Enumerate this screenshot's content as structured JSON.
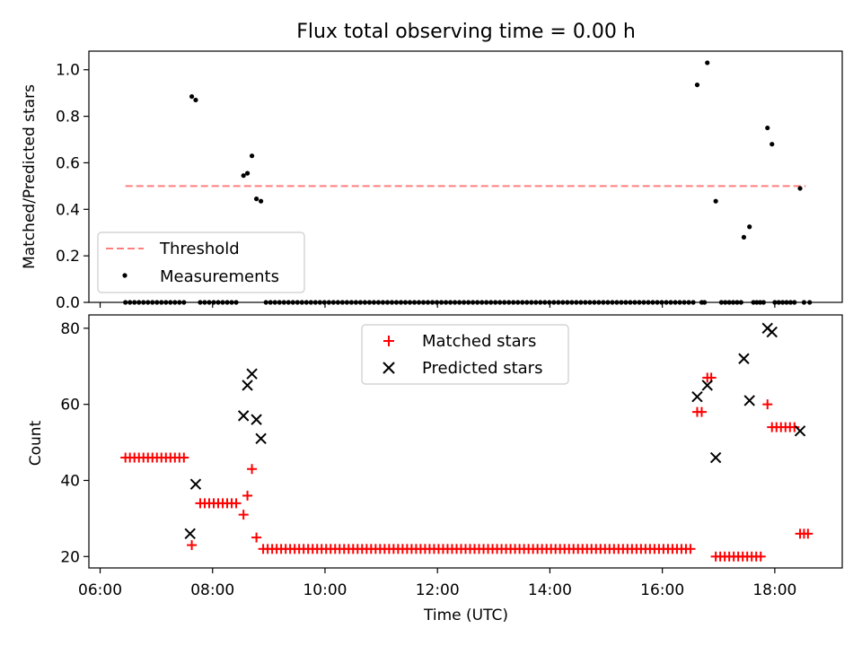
{
  "chart_data": [
    {
      "type": "scatter",
      "title": "Flux total observing time = 0.00 h",
      "ylabel": "Matched/Predicted stars",
      "xlabel": "",
      "xlim": [
        5.8,
        19.2
      ],
      "ylim": [
        0.0,
        1.08
      ],
      "yticks": [
        0.0,
        0.2,
        0.4,
        0.6,
        0.8,
        1.0
      ],
      "ytick_labels": [
        "0.0",
        "0.2",
        "0.4",
        "0.6",
        "0.8",
        "1.0"
      ],
      "legend_position": "lower-left",
      "series": [
        {
          "name": "Threshold",
          "kind": "line",
          "style": "dashed",
          "color": "#ff7f7f",
          "x": [
            6.45,
            18.55
          ],
          "y": [
            0.5,
            0.5
          ]
        },
        {
          "name": "Measurements",
          "kind": "scatter",
          "marker": "dot",
          "color": "#000000",
          "nonzero": {
            "x": [
              7.63,
              7.7,
              8.55,
              8.62,
              8.7,
              8.78,
              8.86,
              16.62,
              16.8,
              16.95,
              17.45,
              17.55,
              17.87,
              17.95,
              18.45
            ],
            "y": [
              0.885,
              0.87,
              0.545,
              0.555,
              0.63,
              0.445,
              0.435,
              0.935,
              1.03,
              0.435,
              0.28,
              0.325,
              0.75,
              0.68,
              0.49
            ]
          },
          "zero_ranges": [
            [
              6.45,
              7.55,
              0.08
            ],
            [
              7.78,
              8.45,
              0.08
            ],
            [
              8.95,
              16.55,
              0.08
            ],
            [
              16.7,
              16.75,
              0.05
            ],
            [
              17.05,
              17.4,
              0.07
            ],
            [
              17.62,
              17.8,
              0.06
            ],
            [
              18.0,
              18.35,
              0.07
            ],
            [
              18.52,
              18.62,
              0.1
            ]
          ]
        }
      ]
    },
    {
      "type": "scatter",
      "title": "",
      "ylabel": "Count",
      "xlabel": "Time (UTC)",
      "xlim": [
        5.8,
        19.2
      ],
      "ylim": [
        17.0,
        83.5
      ],
      "xticks": [
        6,
        8,
        10,
        12,
        14,
        16,
        18
      ],
      "xtick_labels": [
        "06:00",
        "08:00",
        "10:00",
        "12:00",
        "14:00",
        "16:00",
        "18:00"
      ],
      "yticks": [
        20,
        40,
        60,
        80
      ],
      "ytick_labels": [
        "20",
        "40",
        "60",
        "80"
      ],
      "legend_position": "upper-center",
      "series": [
        {
          "name": "Matched stars",
          "kind": "scatter",
          "marker": "plus",
          "color": "#ff0000",
          "x": [
            7.63,
            8.55,
            8.62,
            8.7,
            8.78,
            16.62,
            16.7,
            16.8,
            16.87,
            17.87
          ],
          "y": [
            23,
            31,
            36,
            43,
            25,
            58,
            58,
            67,
            67,
            60
          ],
          "runs": [
            {
              "x0": 6.45,
              "x1": 7.55,
              "step": 0.08,
              "y": 46
            },
            {
              "x0": 7.78,
              "x1": 8.45,
              "step": 0.08,
              "y": 34
            },
            {
              "x0": 8.9,
              "x1": 16.55,
              "step": 0.08,
              "y": 22
            },
            {
              "x0": 16.95,
              "x1": 17.8,
              "step": 0.08,
              "y": 20
            },
            {
              "x0": 17.95,
              "x1": 18.35,
              "step": 0.08,
              "y": 54
            },
            {
              "x0": 18.45,
              "x1": 18.6,
              "step": 0.07,
              "y": 26
            }
          ]
        },
        {
          "name": "Predicted stars",
          "kind": "scatter",
          "marker": "x",
          "color": "#000000",
          "x": [
            7.6,
            7.7,
            8.55,
            8.62,
            8.7,
            8.78,
            8.86,
            16.62,
            16.8,
            16.95,
            17.45,
            17.55,
            17.87,
            17.95,
            18.45
          ],
          "y": [
            26,
            39,
            57,
            65,
            68,
            56,
            51,
            62,
            65,
            46,
            72,
            61,
            80,
            79,
            53
          ]
        }
      ]
    }
  ]
}
